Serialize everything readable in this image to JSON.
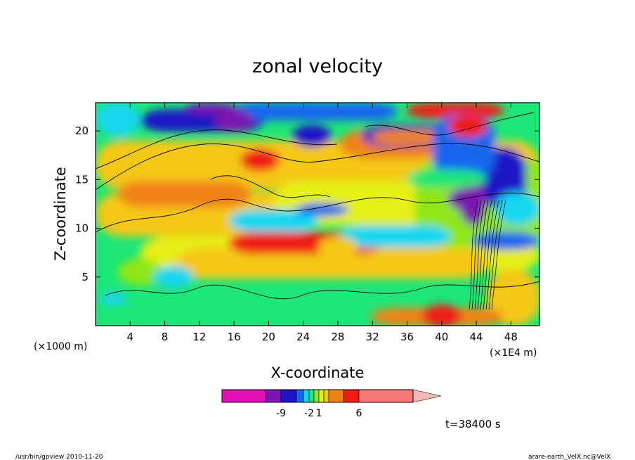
{
  "chart_data": {
    "type": "heatmap",
    "title": "zonal velocity",
    "xlabel": "X-coordinate",
    "ylabel": "Z-coordinate",
    "x_unit_left": "(×1000 m)",
    "x_unit_right": "(×1E4 m)",
    "xlim": [
      0,
      51.3
    ],
    "ylim": [
      0,
      22.9
    ],
    "x_ticks": [
      4,
      8,
      12,
      16,
      20,
      24,
      28,
      32,
      36,
      40,
      44,
      48
    ],
    "y_ticks": [
      5,
      10,
      15,
      20
    ],
    "time_label": "t=38400 s",
    "colorbar": {
      "tick_labels": [
        "-9",
        "-2",
        "1",
        "6"
      ],
      "colors": [
        "#e30fb4",
        "#7b14b0",
        "#1f14c6",
        "#1466f0",
        "#19d6f0",
        "#1ee678",
        "#8fe614",
        "#e6ef14",
        "#f5c814",
        "#f08214",
        "#f01c14",
        "#f87878",
        "#f6b6b6"
      ]
    },
    "features": [
      {
        "x": 25,
        "z": 19.5,
        "level": 2
      },
      {
        "x": 16,
        "z": 21,
        "level": 1
      },
      {
        "x": 43,
        "z": 13,
        "level": 1
      },
      {
        "x": 19,
        "z": 17,
        "level": 10
      },
      {
        "x": 43,
        "z": 20.5,
        "level": 10
      },
      {
        "x": 8,
        "z": 11,
        "level": 8
      },
      {
        "x": 28,
        "z": 8,
        "level": 8
      },
      {
        "x": 9,
        "z": 5,
        "level": 4
      },
      {
        "x": 40,
        "z": 1,
        "level": 10
      }
    ]
  },
  "footer": {
    "left": "/usr/bin/gpview   2010-11-20",
    "right": "arare-earth_VelX.nc@VelX"
  }
}
